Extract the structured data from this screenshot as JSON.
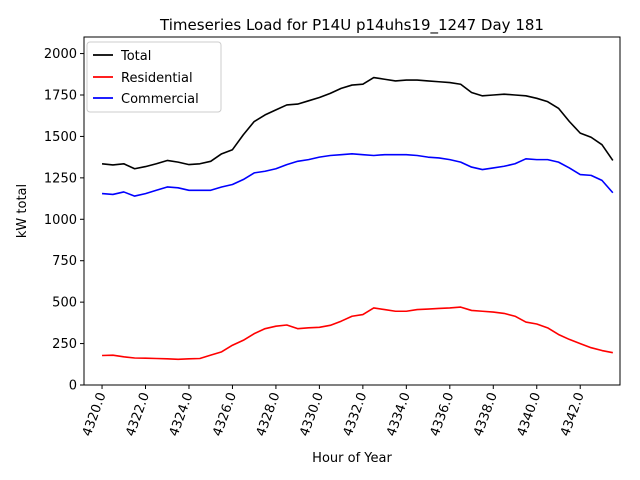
{
  "chart_data": {
    "type": "line",
    "title": "Timeseries Load for P14U p14uhs19_1247  Day 181",
    "xlabel": "Hour of Year",
    "ylabel": "kW total",
    "xlim": [
      4319.17,
      4343.83
    ],
    "ylim": [
      0,
      2100
    ],
    "xticks": [
      4320,
      4322,
      4324,
      4326,
      4328,
      4330,
      4332,
      4334,
      4336,
      4338,
      4340,
      4342
    ],
    "xtick_labels": [
      "4320.0",
      "4322.0",
      "4324.0",
      "4326.0",
      "4328.0",
      "4330.0",
      "4332.0",
      "4334.0",
      "4336.0",
      "4338.0",
      "4340.0",
      "4342.0"
    ],
    "yticks": [
      0,
      250,
      500,
      750,
      1000,
      1250,
      1500,
      1750,
      2000
    ],
    "ytick_labels": [
      "0",
      "250",
      "500",
      "750",
      "1000",
      "1250",
      "1500",
      "1750",
      "2000"
    ],
    "grid": false,
    "legend_position": "top-left",
    "series": [
      {
        "name": "Total",
        "color": "#000000",
        "x": [
          4320.0,
          4320.5,
          4321.0,
          4321.5,
          4322.0,
          4322.5,
          4323.0,
          4323.5,
          4324.0,
          4324.5,
          4325.0,
          4325.5,
          4326.0,
          4326.5,
          4327.0,
          4327.5,
          4328.0,
          4328.5,
          4329.0,
          4329.5,
          4330.0,
          4330.5,
          4331.0,
          4331.5,
          4332.0,
          4332.5,
          4333.0,
          4333.5,
          4334.0,
          4334.5,
          4335.0,
          4335.5,
          4336.0,
          4336.5,
          4337.0,
          4337.5,
          4338.0,
          4338.5,
          4339.0,
          4339.5,
          4340.0,
          4340.5,
          4341.0,
          4341.5,
          4342.0,
          4342.5,
          4343.0,
          4343.5
        ],
        "values": [
          1335,
          1328,
          1335,
          1305,
          1318,
          1335,
          1355,
          1345,
          1330,
          1335,
          1350,
          1395,
          1420,
          1510,
          1590,
          1630,
          1660,
          1690,
          1695,
          1715,
          1735,
          1760,
          1790,
          1810,
          1815,
          1855,
          1845,
          1835,
          1840,
          1840,
          1835,
          1830,
          1825,
          1815,
          1765,
          1745,
          1750,
          1755,
          1750,
          1745,
          1730,
          1710,
          1670,
          1590,
          1520,
          1495,
          1450,
          1355
        ]
      },
      {
        "name": "Residential",
        "color": "#ff0000",
        "x": [
          4320.0,
          4320.5,
          4321.0,
          4321.5,
          4322.0,
          4322.5,
          4323.0,
          4323.5,
          4324.0,
          4324.5,
          4325.0,
          4325.5,
          4326.0,
          4326.5,
          4327.0,
          4327.5,
          4328.0,
          4328.5,
          4329.0,
          4329.5,
          4330.0,
          4330.5,
          4331.0,
          4331.5,
          4332.0,
          4332.5,
          4333.0,
          4333.5,
          4334.0,
          4334.5,
          4335.0,
          4335.5,
          4336.0,
          4336.5,
          4337.0,
          4337.5,
          4338.0,
          4338.5,
          4339.0,
          4339.5,
          4340.0,
          4340.5,
          4341.0,
          4341.5,
          4342.0,
          4342.5,
          4343.0,
          4343.5
        ],
        "values": [
          178,
          180,
          170,
          163,
          162,
          160,
          158,
          155,
          158,
          160,
          180,
          200,
          240,
          270,
          310,
          340,
          355,
          362,
          340,
          345,
          348,
          360,
          385,
          415,
          425,
          465,
          455,
          445,
          445,
          455,
          458,
          462,
          465,
          470,
          450,
          445,
          440,
          432,
          415,
          380,
          368,
          345,
          305,
          275,
          250,
          225,
          208,
          195
        ]
      },
      {
        "name": "Commercial",
        "color": "#0000ff",
        "x": [
          4320.0,
          4320.5,
          4321.0,
          4321.5,
          4322.0,
          4322.5,
          4323.0,
          4323.5,
          4324.0,
          4324.5,
          4325.0,
          4325.5,
          4326.0,
          4326.5,
          4327.0,
          4327.5,
          4328.0,
          4328.5,
          4329.0,
          4329.5,
          4330.0,
          4330.5,
          4331.0,
          4331.5,
          4332.0,
          4332.5,
          4333.0,
          4333.5,
          4334.0,
          4334.5,
          4335.0,
          4335.5,
          4336.0,
          4336.5,
          4337.0,
          4337.5,
          4338.0,
          4338.5,
          4339.0,
          4339.5,
          4340.0,
          4340.5,
          4341.0,
          4341.5,
          4342.0,
          4342.5,
          4343.0,
          4343.5
        ],
        "values": [
          1155,
          1150,
          1165,
          1140,
          1155,
          1175,
          1195,
          1190,
          1175,
          1175,
          1175,
          1195,
          1210,
          1240,
          1280,
          1290,
          1305,
          1330,
          1350,
          1360,
          1375,
          1385,
          1390,
          1395,
          1390,
          1385,
          1390,
          1390,
          1390,
          1385,
          1375,
          1370,
          1360,
          1345,
          1315,
          1300,
          1310,
          1320,
          1335,
          1365,
          1360,
          1360,
          1345,
          1310,
          1270,
          1265,
          1235,
          1160
        ]
      }
    ]
  }
}
